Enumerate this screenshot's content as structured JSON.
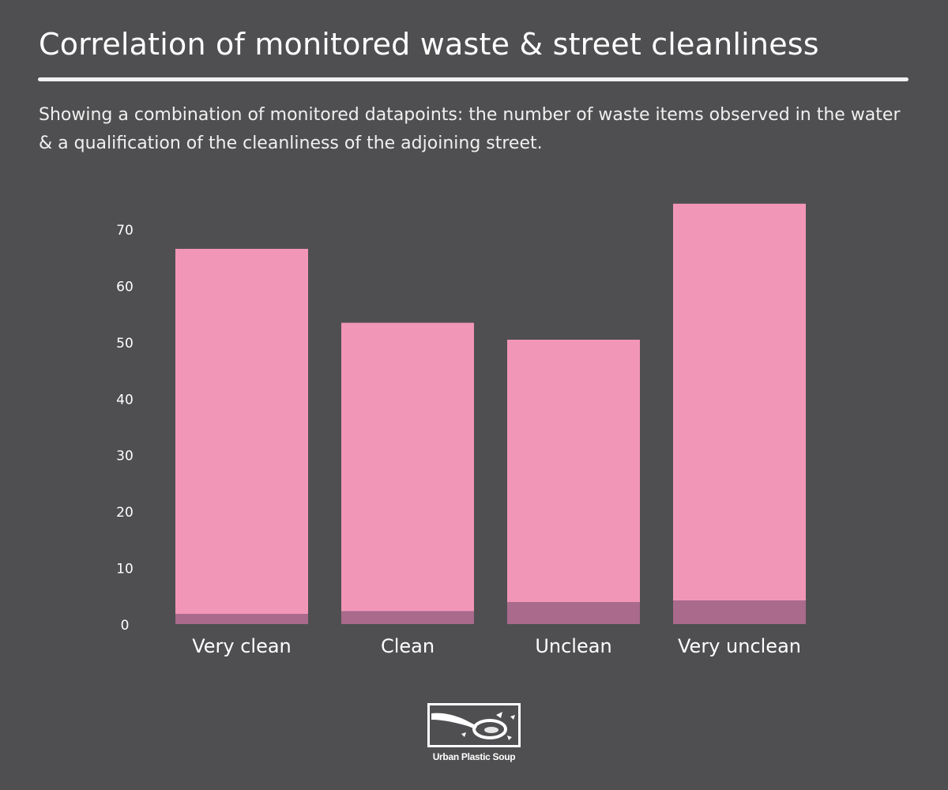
{
  "title": "Correlation of monitored waste & street cleanliness",
  "subtitle": "Showing a combination of monitored datapoints: the number of waste items observed in the water & a qualification of the cleanliness of the adjoining street.",
  "logo_text": "Urban Plastic Soup",
  "colors": {
    "background": "#4f4f51",
    "bar_main": "#f296b8",
    "bar_base": "#a96a8b",
    "text": "#ffffff"
  },
  "chart_data": {
    "type": "bar",
    "stacked": true,
    "categories": [
      "Very clean",
      "Clean",
      "Unclean",
      "Very unclean"
    ],
    "series": [
      {
        "values": [
          1.8,
          2.3,
          3.9,
          4.2
        ]
      },
      {
        "values": [
          64.7,
          51.1,
          46.5,
          70.3
        ]
      }
    ],
    "totals": [
      66.5,
      53.4,
      50.4,
      74.5
    ],
    "yticks": [
      0,
      10,
      20,
      30,
      40,
      50,
      60,
      70
    ],
    "ylim": [
      0,
      75
    ],
    "grid": false,
    "legend": "none"
  }
}
